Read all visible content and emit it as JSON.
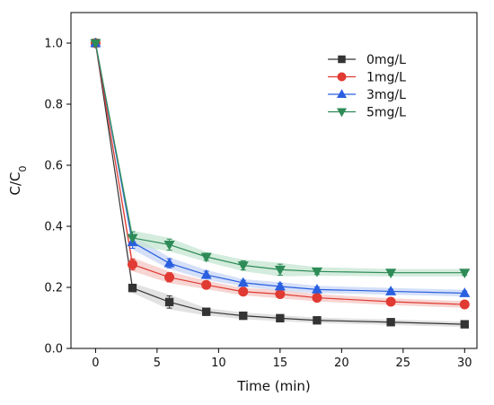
{
  "chart_data": {
    "type": "line",
    "title": "",
    "xlabel": "Time (min)",
    "ylabel_main": "C/C",
    "ylabel_sub": "0",
    "xlim": [
      -2,
      31
    ],
    "ylim": [
      0,
      1.1
    ],
    "xticks": [
      0,
      5,
      10,
      15,
      20,
      25,
      30
    ],
    "yticks": [
      0.0,
      0.2,
      0.4,
      0.6,
      0.8,
      1.0
    ],
    "ytick_labels": [
      "0.0",
      "0.2",
      "0.4",
      "0.6",
      "0.8",
      "1.0"
    ],
    "grid": false,
    "legend_position": "top-right",
    "x": [
      0,
      3,
      6,
      9,
      12,
      15,
      18,
      24,
      30
    ],
    "series": [
      {
        "name": "0mg/L",
        "color": "#333333",
        "band": "#d8d8d8",
        "marker": "square",
        "values": [
          1.0,
          0.198,
          0.152,
          0.12,
          0.107,
          0.099,
          0.092,
          0.086,
          0.079
        ],
        "errors": [
          0,
          0.012,
          0.02,
          0.008,
          0.007,
          0.006,
          0.005,
          0.005,
          0.005
        ]
      },
      {
        "name": "1mg/L",
        "color": "#e03a33",
        "band": "#f4c7c3",
        "marker": "circle",
        "values": [
          1.0,
          0.275,
          0.233,
          0.208,
          0.186,
          0.178,
          0.166,
          0.153,
          0.144
        ],
        "errors": [
          0,
          0.018,
          0.015,
          0.01,
          0.008,
          0.01,
          0.008,
          0.007,
          0.007
        ]
      },
      {
        "name": "3mg/L",
        "color": "#2a5fe0",
        "band": "#c7d5f6",
        "marker": "triangle-up",
        "values": [
          1.0,
          0.348,
          0.279,
          0.241,
          0.215,
          0.203,
          0.193,
          0.187,
          0.181
        ],
        "errors": [
          0,
          0.02,
          0.015,
          0.012,
          0.008,
          0.01,
          0.008,
          0.007,
          0.007
        ]
      },
      {
        "name": "5mg/L",
        "color": "#2e8b57",
        "band": "#c5e6d1",
        "marker": "triangle-down",
        "values": [
          1.0,
          0.362,
          0.34,
          0.3,
          0.272,
          0.258,
          0.252,
          0.248,
          0.248
        ],
        "errors": [
          0,
          0.02,
          0.018,
          0.012,
          0.015,
          0.018,
          0.01,
          0.008,
          0.008
        ]
      }
    ]
  }
}
